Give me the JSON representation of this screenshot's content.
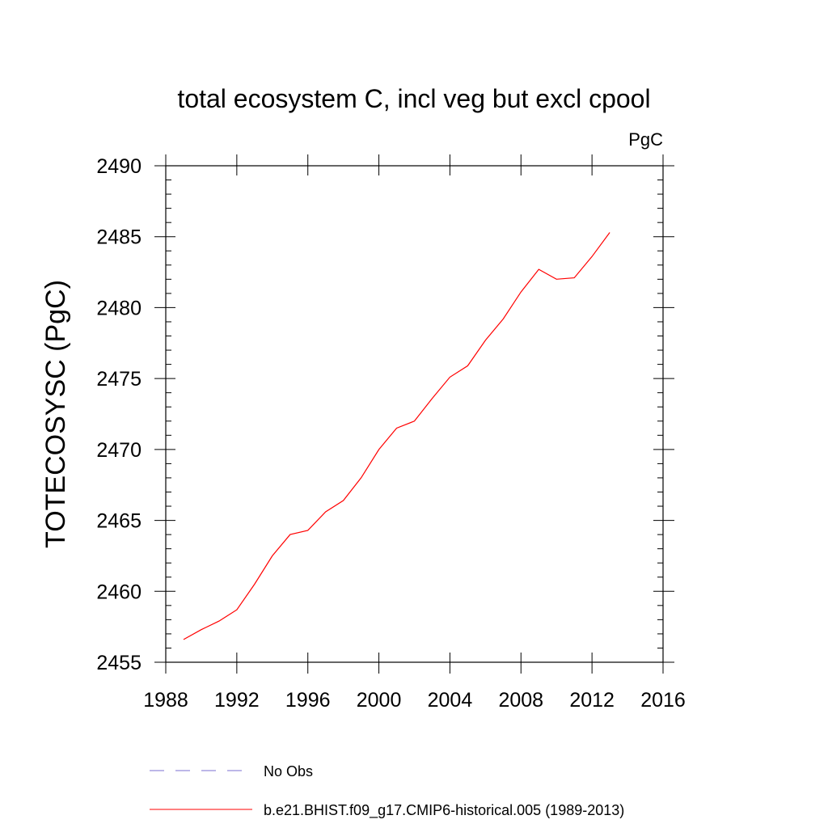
{
  "chart_data": {
    "type": "line",
    "title": "total ecosystem C, incl veg but excl cpool",
    "units": "PgC",
    "xlabel": "",
    "ylabel": "TOTECOSYSC  (PgC)",
    "xlim": [
      1988,
      2016
    ],
    "ylim": [
      2455,
      2490
    ],
    "x_ticks": [
      1988,
      1992,
      1996,
      2000,
      2004,
      2008,
      2012,
      2016
    ],
    "y_ticks": [
      2455,
      2460,
      2465,
      2470,
      2475,
      2480,
      2485,
      2490
    ],
    "grid": false,
    "legend_position": "bottom",
    "series": [
      {
        "name": "No Obs",
        "color": "#7b6fd0",
        "style": "dashed",
        "x": [],
        "values": []
      },
      {
        "name": "b.e21.BHIST.f09_g17.CMIP6-historical.005 (1989-2013)",
        "color": "#ff0000",
        "style": "solid",
        "x": [
          1989,
          1990,
          1991,
          1992,
          1993,
          1994,
          1995,
          1996,
          1997,
          1998,
          1999,
          2000,
          2001,
          2002,
          2003,
          2004,
          2005,
          2006,
          2007,
          2008,
          2009,
          2010,
          2011,
          2012,
          2013
        ],
        "values": [
          2456.6,
          2457.3,
          2457.9,
          2458.7,
          2460.5,
          2462.5,
          2464.0,
          2464.3,
          2465.6,
          2466.4,
          2468.0,
          2470.0,
          2471.5,
          2472.0,
          2473.6,
          2475.1,
          2475.9,
          2477.7,
          2479.2,
          2481.1,
          2482.7,
          2482.0,
          2482.1,
          2483.6,
          2485.3
        ]
      }
    ]
  }
}
